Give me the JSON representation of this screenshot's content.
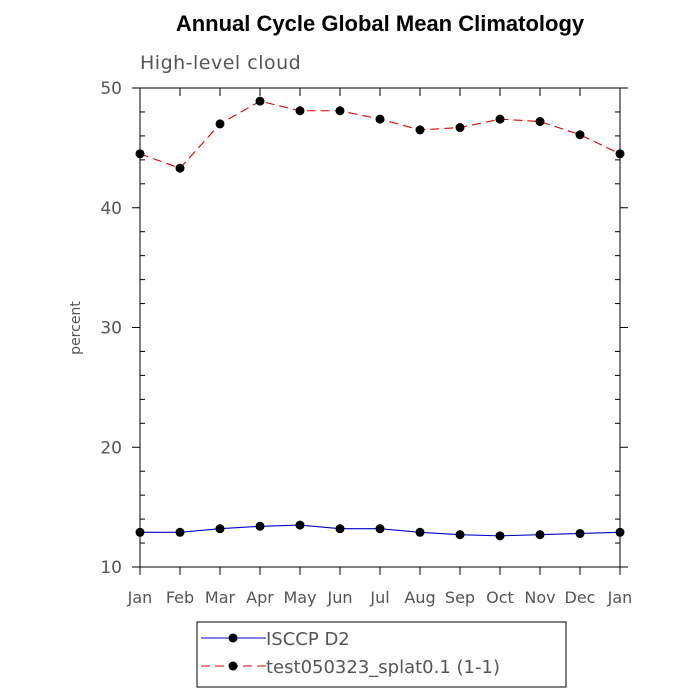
{
  "chart_data": {
    "type": "line",
    "title": "Annual Cycle Global Mean Climatology",
    "subtitle": "High-level cloud",
    "ylabel": "percent",
    "xlabel": "",
    "categories": [
      "Jan",
      "Feb",
      "Mar",
      "Apr",
      "May",
      "Jun",
      "Jul",
      "Aug",
      "Sep",
      "Oct",
      "Nov",
      "Dec",
      "Jan"
    ],
    "ylim": [
      10,
      50
    ],
    "yticks": [
      10,
      20,
      30,
      40,
      50
    ],
    "ytick_labels": [
      "10",
      "20",
      "30",
      "40",
      "50"
    ],
    "grid": false,
    "legend_position": "bottom",
    "series": [
      {
        "name": "ISCCP D2",
        "color": "#0000cc",
        "line_style": "solid",
        "marker": "filled-circle",
        "values": [
          12.9,
          12.9,
          13.2,
          13.4,
          13.5,
          13.2,
          13.2,
          12.9,
          12.7,
          12.6,
          12.7,
          12.8,
          12.9
        ]
      },
      {
        "name": "test050323_splat0.1 (1-1)",
        "color": "#dd0000",
        "line_style": "dashed",
        "marker": "filled-circle",
        "values": [
          44.5,
          43.3,
          47.0,
          48.9,
          48.1,
          48.1,
          47.4,
          46.5,
          46.7,
          47.4,
          47.2,
          46.1,
          44.5
        ]
      }
    ]
  }
}
